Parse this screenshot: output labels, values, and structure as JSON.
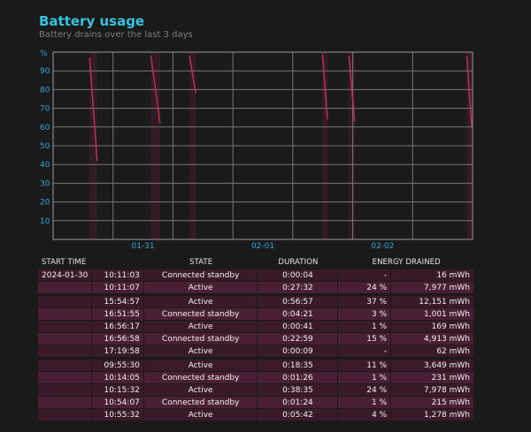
{
  "title": "Battery usage",
  "subtitle": "Battery drains over the last 3 days",
  "chart_data": {
    "type": "line",
    "y_unit_label": "%",
    "ylim": [
      0,
      100
    ],
    "y_ticks": [
      "90",
      "80",
      "70",
      "60",
      "50",
      "40",
      "30",
      "20",
      "10"
    ],
    "x_ticks": [
      "01-31",
      "02-01",
      "02-02"
    ],
    "segments": [
      {
        "x_start": 0.087,
        "x_end": 0.105,
        "y_start": 97,
        "y_end": 42
      },
      {
        "x_start": 0.233,
        "x_end": 0.255,
        "y_start": 98,
        "y_end": 62
      },
      {
        "x_start": 0.325,
        "x_end": 0.34,
        "y_start": 98,
        "y_end": 78
      },
      {
        "x_start": 0.642,
        "x_end": 0.654,
        "y_start": 99,
        "y_end": 64
      },
      {
        "x_start": 0.705,
        "x_end": 0.719,
        "y_start": 98,
        "y_end": 63
      },
      {
        "x_start": 0.986,
        "x_end": 0.998,
        "y_start": 98,
        "y_end": 60
      }
    ],
    "grid": true,
    "line_color": "#c0334d",
    "bar_color": "#3a1a2a"
  },
  "table": {
    "headers": [
      "START TIME",
      "STATE",
      "DURATION",
      "ENERGY DRAINED"
    ],
    "rows": [
      {
        "date": "2024-01-30",
        "time": "10:11:03",
        "state": "Connected standby",
        "duration": "0:00:04",
        "pct": "-",
        "mwh": "16 mWh"
      },
      {
        "date": "",
        "time": "10:11:07",
        "state": "Active",
        "duration": "0:27:32",
        "pct": "24 %",
        "mwh": "7,977 mWh"
      },
      {
        "gap": true
      },
      {
        "date": "",
        "time": "15:54:57",
        "state": "Active",
        "duration": "0:56:57",
        "pct": "37 %",
        "mwh": "12,151 mWh"
      },
      {
        "date": "",
        "time": "16:51:55",
        "state": "Connected standby",
        "duration": "0:04:21",
        "pct": "3 %",
        "mwh": "1,001 mWh"
      },
      {
        "date": "",
        "time": "16:56:17",
        "state": "Active",
        "duration": "0:00:41",
        "pct": "1 %",
        "mwh": "169 mWh"
      },
      {
        "date": "",
        "time": "16:56:58",
        "state": "Connected standby",
        "duration": "0:22:59",
        "pct": "15 %",
        "mwh": "4,913 mWh"
      },
      {
        "date": "",
        "time": "17:19:58",
        "state": "Active",
        "duration": "0:00:09",
        "pct": "-",
        "mwh": "62 mWh"
      },
      {
        "gap": true
      },
      {
        "date": "",
        "time": "09:55:30",
        "state": "Active",
        "duration": "0:18:35",
        "pct": "11 %",
        "mwh": "3,649 mWh"
      },
      {
        "date": "",
        "time": "10:14:05",
        "state": "Connected standby",
        "duration": "0:01:26",
        "pct": "1 %",
        "mwh": "231 mWh"
      },
      {
        "date": "",
        "time": "10:15:32",
        "state": "Active",
        "duration": "0:38:35",
        "pct": "24 %",
        "mwh": "7,978 mWh"
      },
      {
        "date": "",
        "time": "10:54:07",
        "state": "Connected standby",
        "duration": "0:01:24",
        "pct": "1 %",
        "mwh": "215 mWh"
      },
      {
        "date": "",
        "time": "10:55:32",
        "state": "Active",
        "duration": "0:05:42",
        "pct": "4 %",
        "mwh": "1,278 mWh"
      }
    ]
  }
}
